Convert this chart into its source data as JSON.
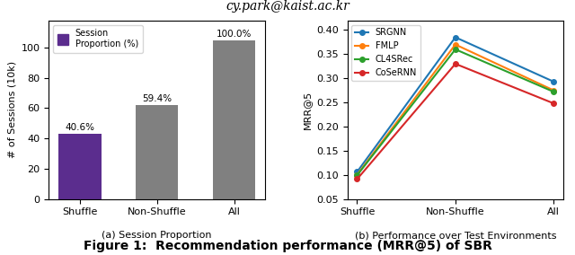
{
  "bar_categories": [
    "Shuffle",
    "Non-Shuffle",
    "All"
  ],
  "bar_values": [
    43,
    62,
    105
  ],
  "bar_colors": [
    "#5b2d8e",
    "#808080",
    "#808080"
  ],
  "bar_percentages": [
    "40.6%",
    "59.4%",
    "100.0%"
  ],
  "bar_ylabel": "# of Sessions (10k)",
  "bar_ylim": [
    0,
    118
  ],
  "bar_yticks": [
    0,
    20,
    40,
    60,
    80,
    100
  ],
  "bar_subtitle": "(a) Session Proportion",
  "bar_legend_label": "Session\nProportion (%)",
  "line_categories": [
    "Shuffle",
    "Non-Shuffle",
    "All"
  ],
  "line_series": [
    {
      "name": "SRGNN",
      "values": [
        0.106,
        0.385,
        0.293
      ],
      "color": "#1f77b4",
      "marker": "o"
    },
    {
      "name": "FMLP",
      "values": [
        0.1,
        0.37,
        0.275
      ],
      "color": "#ff7f0e",
      "marker": "o"
    },
    {
      "name": "CL4SRec",
      "values": [
        0.099,
        0.36,
        0.272
      ],
      "color": "#2ca02c",
      "marker": "o"
    },
    {
      "name": "CoSeRNN",
      "values": [
        0.091,
        0.33,
        0.248
      ],
      "color": "#d62728",
      "marker": "o"
    }
  ],
  "line_ylabel": "MRR@5",
  "line_ylim": [
    0.05,
    0.42
  ],
  "line_yticks": [
    0.05,
    0.1,
    0.15,
    0.2,
    0.25,
    0.3,
    0.35,
    0.4
  ],
  "line_subtitle": "(b) Performance over Test Environments",
  "figure_caption": "Figure 1:  Recommendation performance (MRR@5) of SBR",
  "suptitle": "cy.park@kaist.ac.kr"
}
